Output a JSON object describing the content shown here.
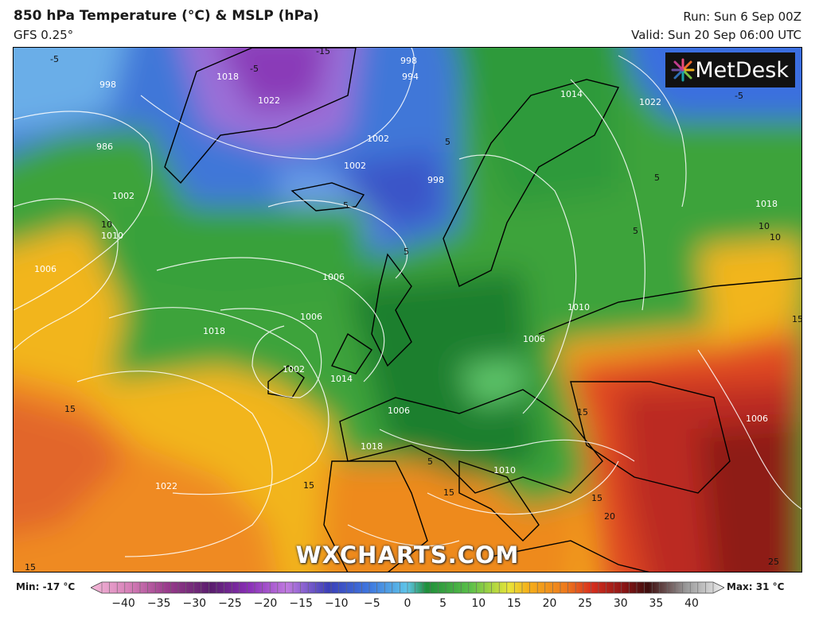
{
  "header": {
    "title": "850 hPa Temperature (°C) & MSLP (hPa)",
    "model": "GFS 0.25°",
    "run": "Run: Sun 6 Sep 00Z",
    "valid": "Valid: Sun 20 Sep 06:00 UTC"
  },
  "logo": {
    "text": "MetDesk"
  },
  "watermark": {
    "text": "WXCHARTS.COM"
  },
  "map_labels": {
    "isobars": [
      "998",
      "1022",
      "1018",
      "994",
      "998",
      "1014",
      "1022",
      "1002",
      "1002",
      "998",
      "986",
      "1002",
      "1010",
      "1006",
      "1006",
      "1018",
      "1006",
      "1014",
      "1010",
      "1006",
      "1018",
      "1022",
      "1010",
      "1006",
      "1006",
      "1018",
      "1002"
    ],
    "temps": [
      "-5",
      "-15",
      "-5",
      "-5",
      "5",
      "5",
      "5",
      "10",
      "10",
      "5",
      "5",
      "10",
      "15",
      "15",
      "15",
      "15",
      "15",
      "20",
      "15",
      "25",
      "15",
      "5"
    ]
  },
  "colorbar": {
    "min_label": "Min: -17 °C",
    "max_label": "Max: 31 °C",
    "ticks": [
      "−40",
      "−35",
      "−30",
      "−25",
      "−20",
      "−15",
      "−10",
      "−5",
      "0",
      "5",
      "10",
      "15",
      "20",
      "25",
      "30",
      "35",
      "40"
    ],
    "range": [
      -40,
      40
    ]
  },
  "colors": {
    "cold_purple": "#8e3fb8",
    "blue": "#3a6fe0",
    "green": "#2e9a3a",
    "yellow": "#f2c318",
    "orange": "#ef7f1e",
    "red": "#cc2a22",
    "darkred": "#7a1414"
  }
}
